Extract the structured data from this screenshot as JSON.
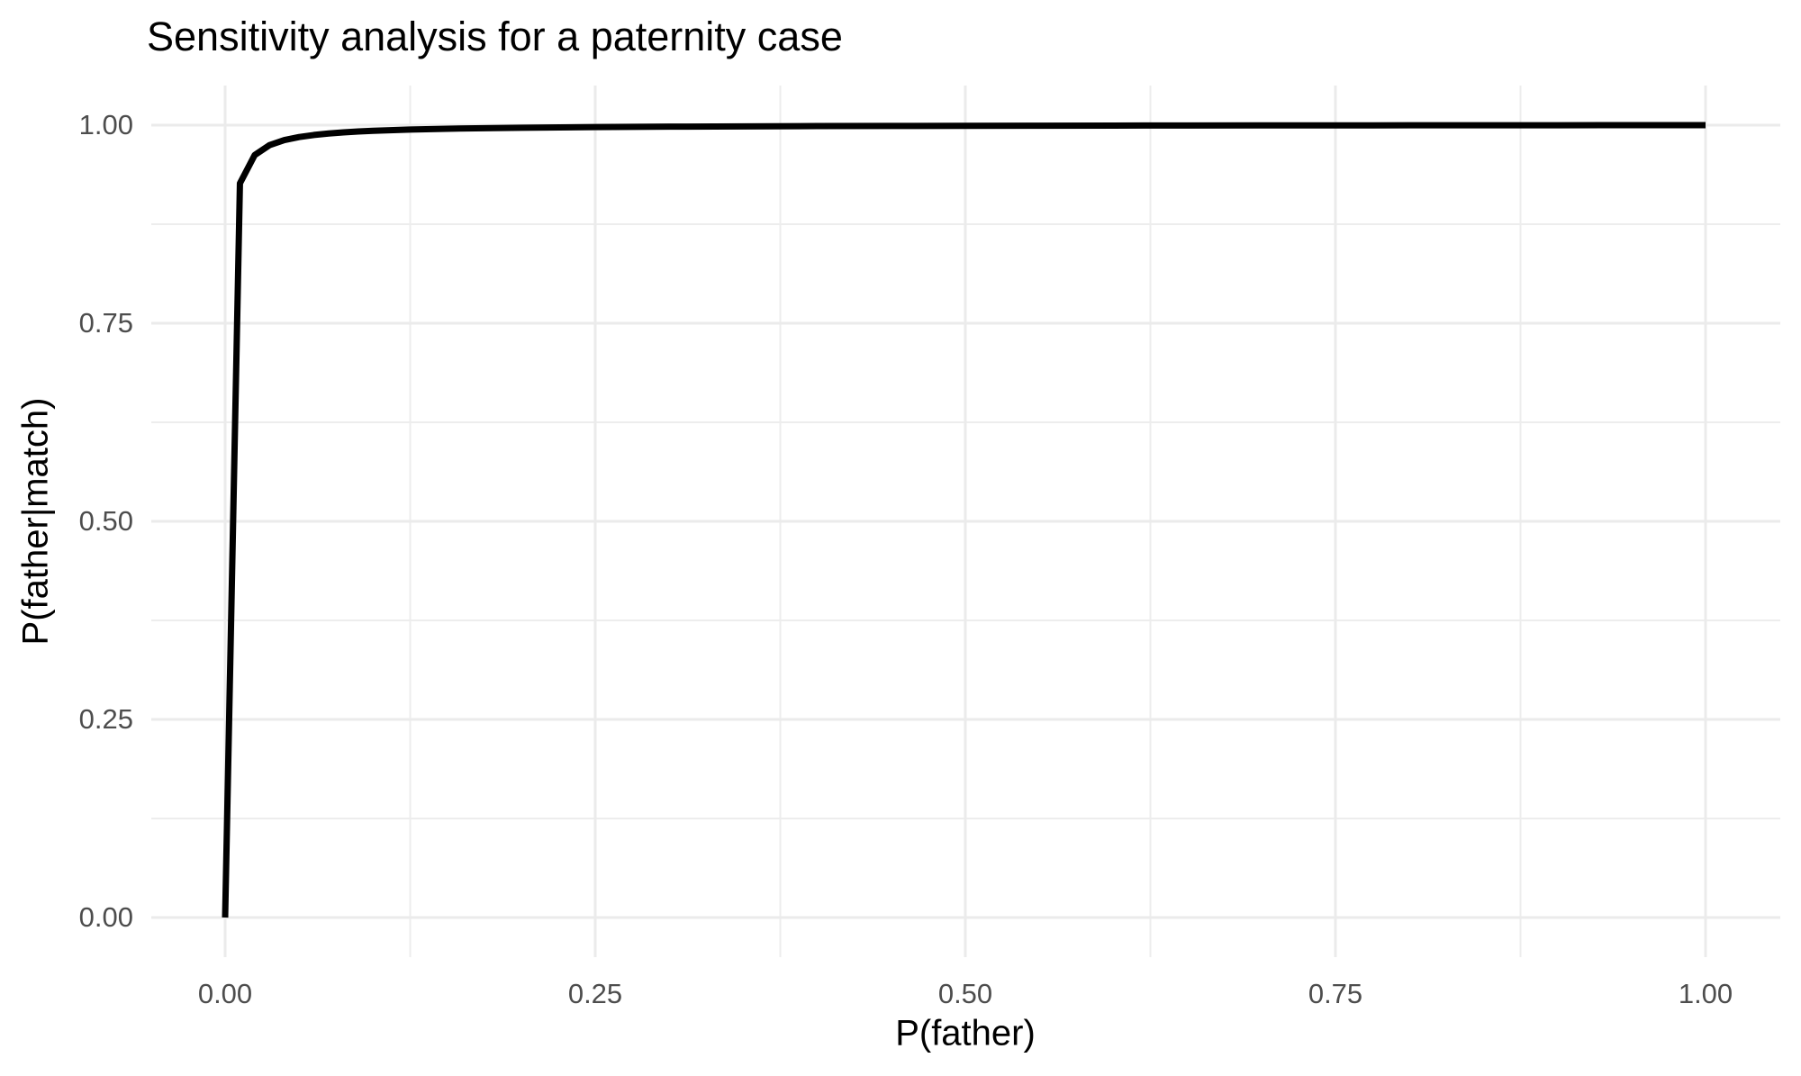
{
  "chart_data": {
    "type": "line",
    "title": "Sensitivity analysis for a paternity case",
    "xlabel": "P(father)",
    "ylabel": "P(father|match)",
    "xlim": [
      0,
      1
    ],
    "ylim": [
      0,
      1
    ],
    "grid": "major+minor",
    "legend": "none",
    "x_ticks": {
      "values": [
        0,
        0.25,
        0.5,
        0.75,
        1
      ],
      "labels": [
        "0.00",
        "0.25",
        "0.50",
        "0.75",
        "1.00"
      ]
    },
    "y_ticks": {
      "values": [
        0,
        0.25,
        0.5,
        0.75,
        1
      ],
      "labels": [
        "0.00",
        "0.25",
        "0.50",
        "0.75",
        "1.00"
      ]
    },
    "x_minor": [
      0.125,
      0.375,
      0.625,
      0.875
    ],
    "y_minor": [
      0.125,
      0.375,
      0.625,
      0.875
    ],
    "series": [
      {
        "name": "posterior-probability-curve",
        "color": "#000000",
        "x": [
          0,
          0.01,
          0.02,
          0.03,
          0.04,
          0.05,
          0.06,
          0.07,
          0.08,
          0.09,
          0.1,
          0.125,
          0.15,
          0.175,
          0.2,
          0.25,
          0.3,
          0.35,
          0.4,
          0.45,
          0.5,
          0.55,
          0.6,
          0.65,
          0.7,
          0.75,
          0.8,
          0.85,
          0.9,
          0.95,
          1.0
        ],
        "y": [
          0,
          0.9266,
          0.9623,
          0.9748,
          0.9812,
          0.985,
          0.9876,
          0.9895,
          0.9909,
          0.992,
          0.9929,
          0.9944,
          0.9955,
          0.9962,
          0.9968,
          0.9976,
          0.9981,
          0.9985,
          0.9988,
          0.999,
          0.9992,
          0.9993,
          0.9995,
          0.9996,
          0.9997,
          0.9997,
          0.9998,
          0.9999,
          0.9999,
          1.0,
          1.0
        ]
      }
    ]
  },
  "colors": {
    "background": "#FFFFFF",
    "grid_major": "#EBEBEB",
    "grid_minor": "#EDEDED",
    "tick_label": "#4D4D4D",
    "text": "#000000",
    "line": "#000000"
  }
}
